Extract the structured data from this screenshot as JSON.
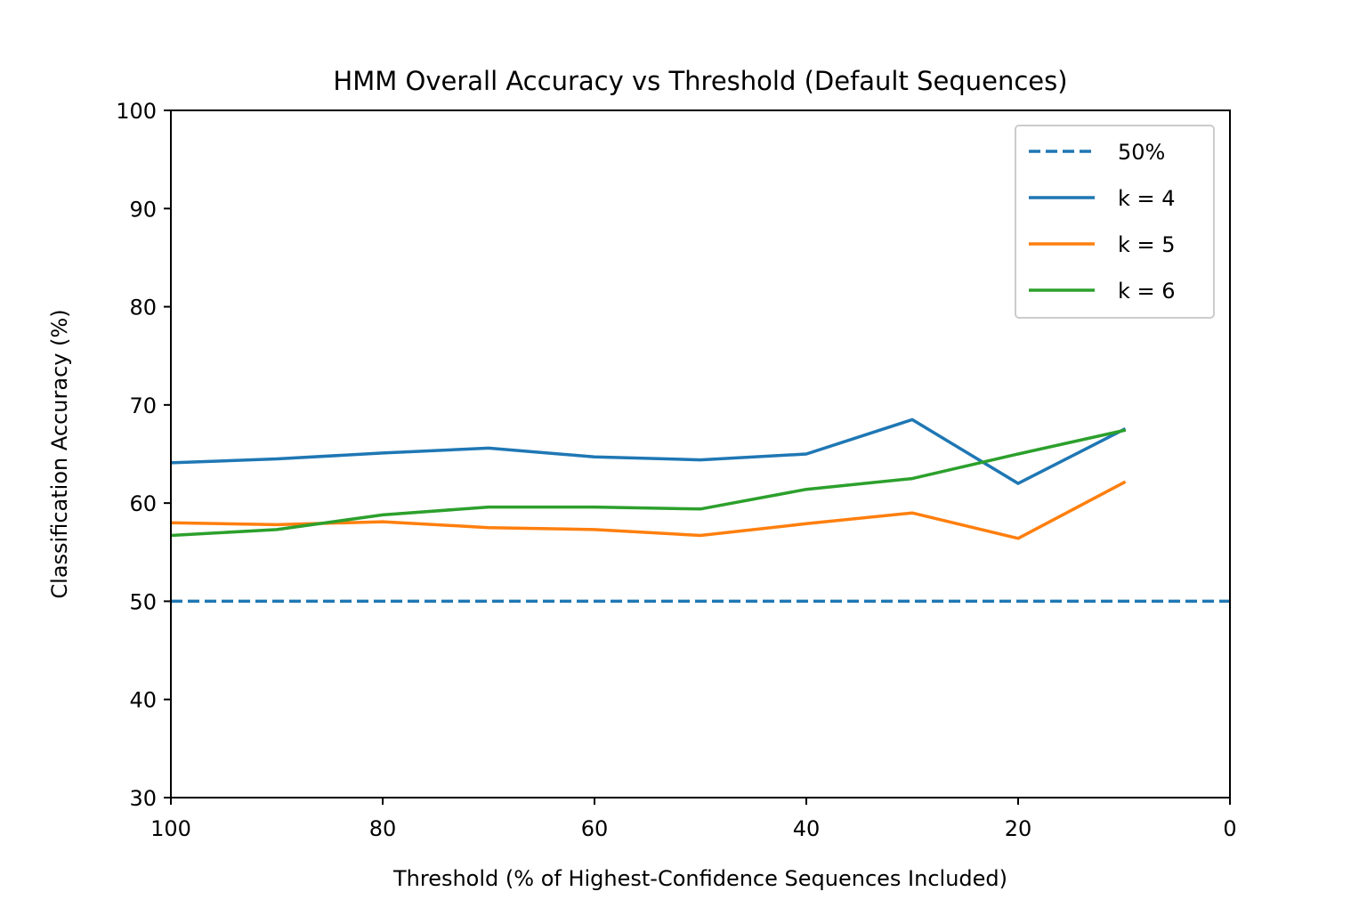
{
  "chart_data": {
    "type": "line",
    "title": "HMM Overall Accuracy vs Threshold (Default Sequences)",
    "xlabel": "Threshold (% of Highest-Confidence Sequences Included)",
    "ylabel": "Classification Accuracy (%)",
    "xlim": [
      100,
      0
    ],
    "ylim": [
      30,
      100
    ],
    "xticks": [
      100,
      80,
      60,
      40,
      20,
      0
    ],
    "yticks": [
      30,
      40,
      50,
      60,
      70,
      80,
      90,
      100
    ],
    "x": [
      100,
      90,
      80,
      70,
      60,
      50,
      40,
      30,
      20,
      10
    ],
    "legend_position": "top-right",
    "grid": false,
    "reference_line": {
      "name": "50%",
      "y": 50,
      "color": "#1f77b4",
      "style": "dashed"
    },
    "series": [
      {
        "name": "k = 4",
        "color": "#1f77b4",
        "values": [
          64.1,
          64.5,
          65.1,
          65.6,
          64.7,
          64.4,
          65.0,
          68.5,
          62.0,
          67.5
        ]
      },
      {
        "name": "k = 5",
        "color": "#ff7f0e",
        "values": [
          58.0,
          57.8,
          58.1,
          57.5,
          57.3,
          56.7,
          57.9,
          59.0,
          56.4,
          62.1
        ]
      },
      {
        "name": "k = 6",
        "color": "#2ca02c",
        "values": [
          56.7,
          57.3,
          58.8,
          59.6,
          59.6,
          59.4,
          61.4,
          62.5,
          65.0,
          67.4
        ]
      }
    ]
  }
}
